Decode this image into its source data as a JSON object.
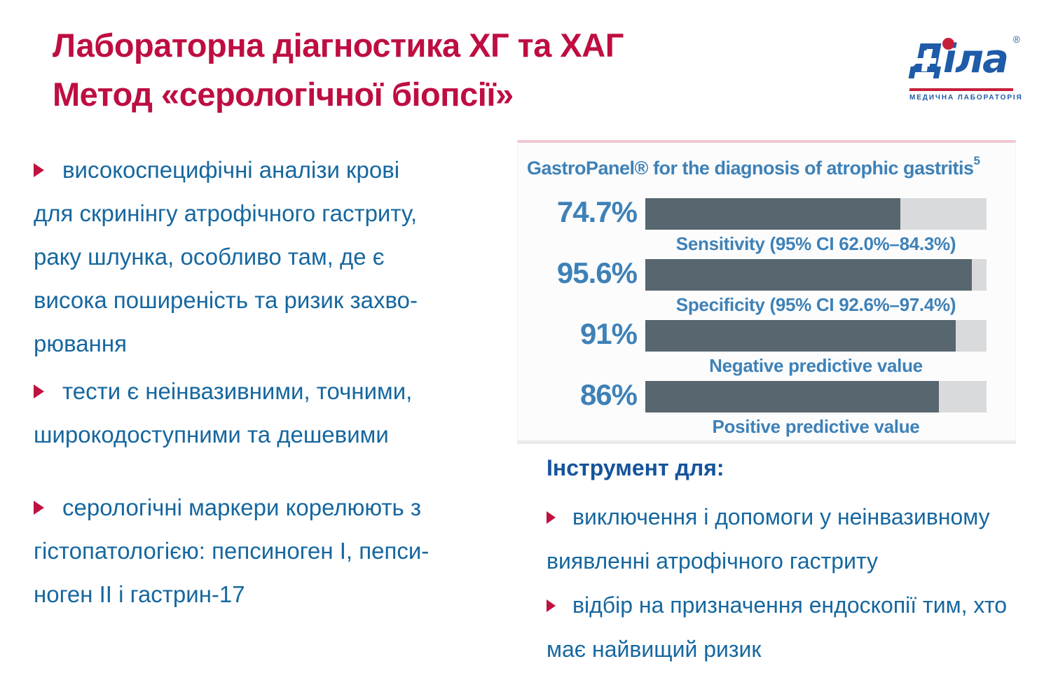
{
  "colors": {
    "title-red": "#BE0E41",
    "body-blue": "#16679F",
    "heading-blue": "#14549B",
    "marker-red": "#BF1240",
    "chart-blue": "#3E81B7",
    "bar-fill": "#57666F",
    "bar-track": "#D9DADB",
    "logo-blue": "#1E5BA8",
    "logo-red": "#C6203C"
  },
  "header": {
    "title_line1": "Лабораторна діагностика ХГ та ХАГ",
    "title_line2": "Метод «серологічної біопсії»"
  },
  "logo": {
    "brand": "Діла",
    "registered": "®",
    "caption": "МЕДИЧНА ЛАБОРАТОРІЯ"
  },
  "left_column": {
    "bullets": [
      {
        "lines": [
          "високоспецифічні аналізи крові",
          "для скринінгу атрофічного гастриту,",
          "раку шлунка, особливо там, де є",
          "висока поширеність та ризик захво-",
          "рювання"
        ]
      },
      {
        "lines": [
          "тести є неінвазивними, точними,",
          "широкодоступними та дешевими"
        ]
      },
      {
        "lines": [
          "серологічні маркери корелюють з",
          "гістопатологією: пепсиноген І, пепси-",
          "ноген ІІ і гастрин-17"
        ]
      }
    ]
  },
  "chart_data": {
    "type": "bar",
    "orientation": "horizontal",
    "title": "GastroPanel® for the diagnosis of atrophic gastritis",
    "title_superscript": "5",
    "categories": [
      "Sensitivity (95% CI 62.0%–84.3%)",
      "Specificity (95% CI 92.6%–97.4%)",
      "Negative predictive value",
      "Positive predictive value"
    ],
    "values": [
      74.7,
      95.6,
      91,
      86
    ],
    "value_labels": [
      "74.7%",
      "95.6%",
      "91%",
      "86%"
    ],
    "xlim": [
      0,
      100
    ],
    "grid": false,
    "legend": "none"
  },
  "tool_section": {
    "heading": "Інструмент  для:",
    "bullets": [
      {
        "lines": [
          "виключення  і допомоги у неінвазивному",
          "виявленні атрофічного гастриту"
        ]
      },
      {
        "lines": [
          "відбір на призначення ендоскопії тим, хто",
          "має найвищий ризик"
        ]
      }
    ]
  }
}
